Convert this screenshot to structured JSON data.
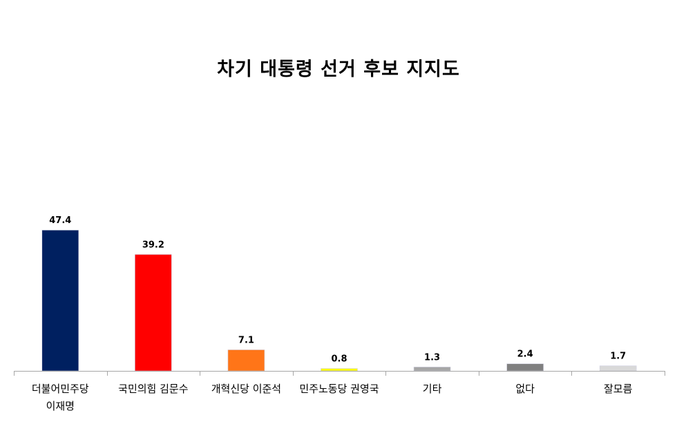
{
  "chart_data": {
    "type": "bar",
    "title": "차기 대통령 선거 후보 지지도",
    "xlabel": "",
    "ylabel": "",
    "categories": [
      [
        "더불어민주당",
        "이재명"
      ],
      [
        "국민의힘 김문수"
      ],
      [
        "개혁신당 이준석"
      ],
      [
        "민주노동당 권영국"
      ],
      [
        "기타"
      ],
      [
        "없다"
      ],
      [
        "잘모름"
      ]
    ],
    "values": [
      47.4,
      39.2,
      7.1,
      0.8,
      1.3,
      2.4,
      1.7
    ],
    "value_labels": [
      "47.4",
      "39.2",
      "7.1",
      "0.8",
      "1.3",
      "2.4",
      "1.7"
    ],
    "colors": [
      "#002060",
      "#FF0000",
      "#FF7518",
      "#FFFF00",
      "#A6A6A6",
      "#808080",
      "#D9D9D9"
    ],
    "ylim": [
      0,
      100
    ],
    "grid": false,
    "legend": "none"
  }
}
